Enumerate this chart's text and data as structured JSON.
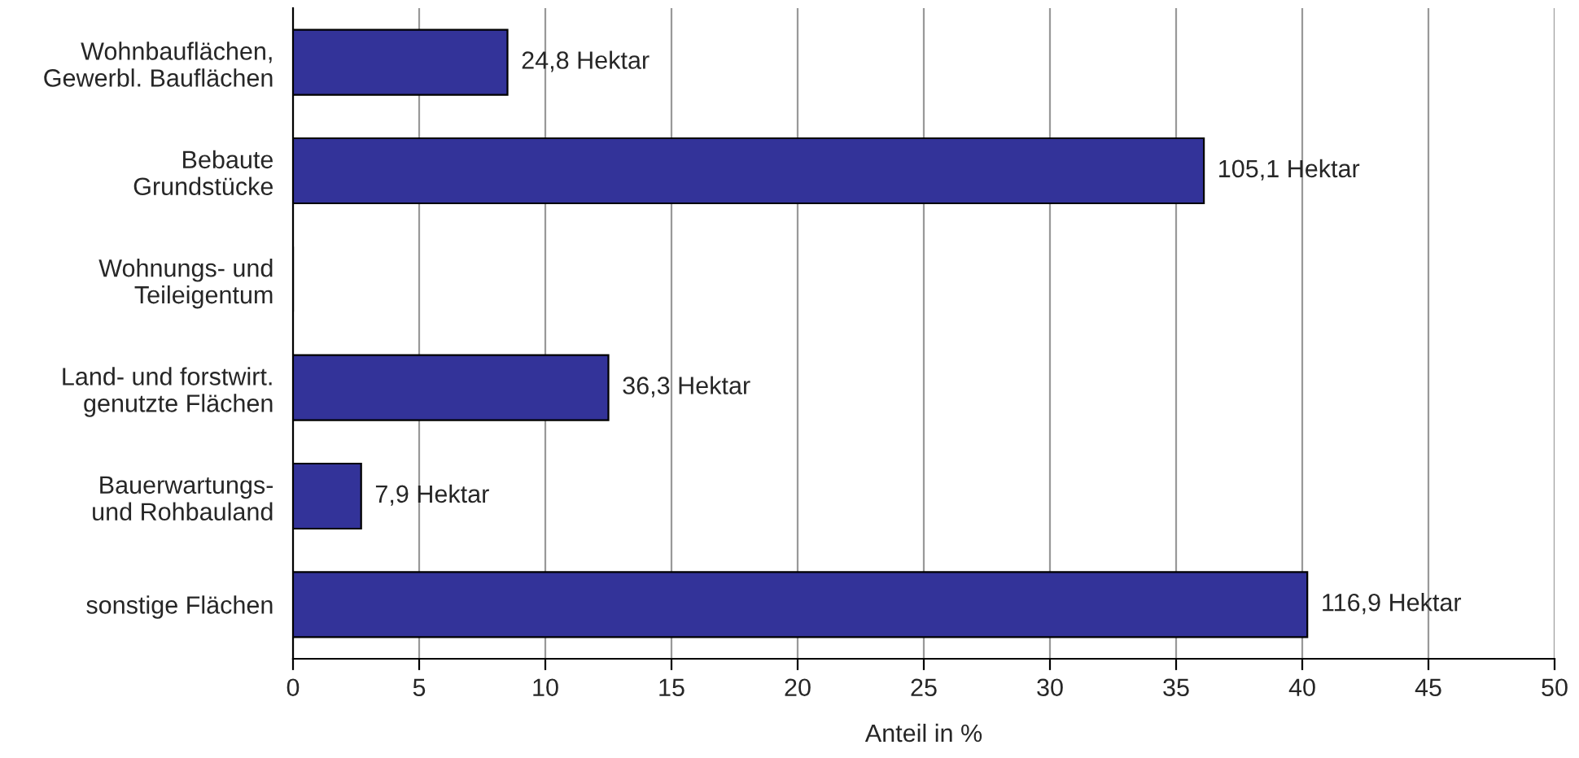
{
  "chart_data": {
    "type": "bar",
    "orientation": "horizontal",
    "xlabel": "Anteil in %",
    "categories": [
      "Wohnbauflächen,\nGewerbl. Bauflächen",
      "Bebaute\nGrundstücke",
      "Wohnungs- und\nTeileigentum",
      "Land- und forstwirt.\ngenutzte Flächen",
      "Bauerwartungs-\nund Rohbauland",
      "sonstige Flächen"
    ],
    "values": [
      8.5,
      36.1,
      0,
      12.5,
      2.7,
      40.2
    ],
    "annotations": [
      {
        "text": "24,8 Hektar",
        "x": 8.5,
        "y": "Wohnbauflächen,\nGewerbl. Bauflächen"
      },
      {
        "text": "105,1 Hektar",
        "x": 36.1,
        "y": "Bebaute\nGrundstücke"
      },
      {
        "text": "36,3 Hektar",
        "x": 12.5,
        "y": "Land- und forstwirt.\ngenutzte Flächen"
      },
      {
        "text": "7,9 Hektar",
        "x": 2.7,
        "y": "Bauerwartungs-\nund Rohbauland"
      },
      {
        "text": "116,9 Hektar",
        "x": 40.2,
        "y": "sonstige Flächen"
      }
    ],
    "color": "#333399",
    "xlim": [
      0,
      50
    ],
    "xticks": [
      0,
      5,
      10,
      15,
      20,
      25,
      30,
      35,
      40,
      45,
      50
    ],
    "grid": "x",
    "legend": false
  }
}
